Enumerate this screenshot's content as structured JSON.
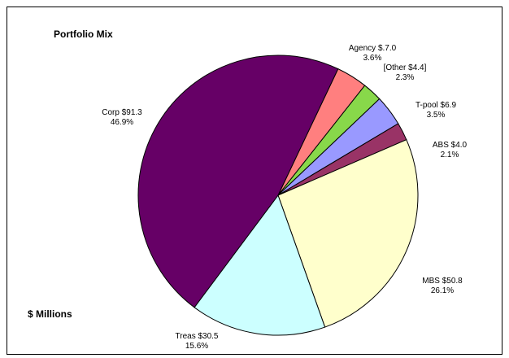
{
  "chart_data": {
    "type": "pie",
    "title": "Portfolio Mix",
    "subtitle": "$ Millions",
    "slices": [
      {
        "label": "Agency $.7.0",
        "value": 7.0,
        "percent": "3.6%",
        "color": "#ff7f7f"
      },
      {
        "label": "[Other $4.4]",
        "value": 4.4,
        "percent": "2.3%",
        "color": "#88d84a"
      },
      {
        "label": "T-pool $6.9",
        "value": 6.9,
        "percent": "3.5%",
        "color": "#9999ff"
      },
      {
        "label": "ABS $4.0",
        "value": 4.0,
        "percent": "2.1%",
        "color": "#993366"
      },
      {
        "label": "MBS $50.8",
        "value": 50.8,
        "percent": "26.1%",
        "color": "#ffffcc"
      },
      {
        "label": "Treas $30.5",
        "value": 30.5,
        "percent": "15.6%",
        "color": "#ccffff"
      },
      {
        "label": "Corp $91.3",
        "value": 91.3,
        "percent": "46.9%",
        "color": "#660066"
      }
    ]
  }
}
